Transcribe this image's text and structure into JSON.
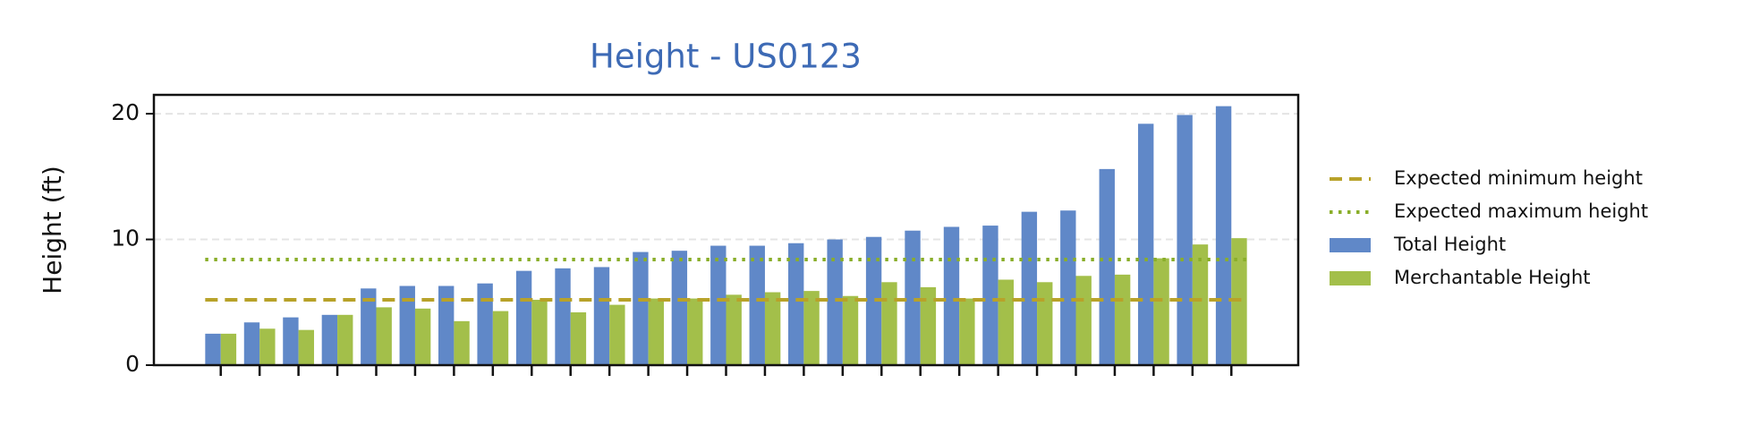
{
  "chart_data": {
    "type": "bar",
    "title": "Height - US0123",
    "y_label": "Height (ft)",
    "categories": [
      null,
      null,
      null,
      null,
      null,
      null,
      null,
      null,
      null,
      null,
      null,
      null,
      null,
      null,
      null,
      null,
      null,
      null,
      null,
      null,
      null,
      null,
      null,
      null,
      null,
      null,
      null
    ],
    "series": [
      {
        "name": "Total Height",
        "color": "#6088c8",
        "values": [
          2.5,
          3.4,
          3.8,
          4.0,
          6.1,
          6.3,
          6.3,
          6.5,
          7.5,
          7.7,
          7.8,
          9.0,
          9.1,
          9.5,
          9.5,
          9.7,
          10.0,
          10.2,
          10.7,
          11.0,
          11.1,
          12.2,
          12.3,
          15.6,
          19.2,
          19.9,
          20.6
        ]
      },
      {
        "name": "Merchantable Height",
        "color": "#a3bf4a",
        "values": [
          2.5,
          2.9,
          2.8,
          4.0,
          4.6,
          4.5,
          3.5,
          4.3,
          5.2,
          4.2,
          4.8,
          5.3,
          5.3,
          5.6,
          5.8,
          5.9,
          5.5,
          6.6,
          6.2,
          5.3,
          6.8,
          6.6,
          7.1,
          7.2,
          8.5,
          9.6,
          10.1
        ]
      }
    ],
    "reference_lines": [
      {
        "name": "Expected minimum height",
        "value": 5.2,
        "color": "#b8a22a",
        "style": "dashed"
      },
      {
        "name": "Expected maximum height",
        "value": 8.4,
        "color": "#8aae2a",
        "style": "dotted"
      }
    ],
    "ylim": [
      0,
      21.5
    ],
    "yticks": [
      0,
      10,
      20
    ],
    "grid": true,
    "legend": "right"
  }
}
